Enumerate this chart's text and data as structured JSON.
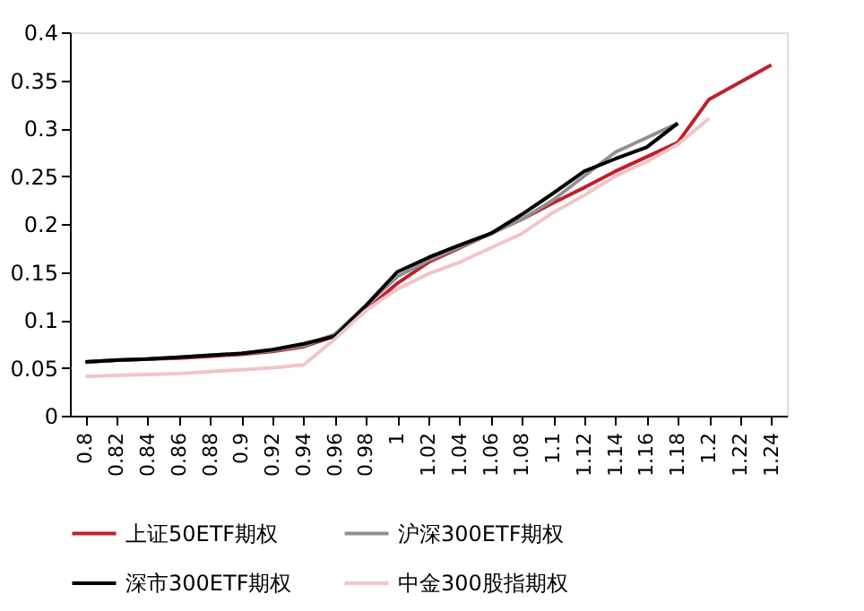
{
  "chart_data": {
    "type": "line",
    "categories": [
      "0.8",
      "0.82",
      "0.84",
      "0.86",
      "0.88",
      "0.9",
      "0.92",
      "0.94",
      "0.96",
      "0.98",
      "1",
      "1.02",
      "1.04",
      "1.06",
      "1.08",
      "1.1",
      "1.12",
      "1.14",
      "1.16",
      "1.18",
      "1.2",
      "1.22",
      "1.24"
    ],
    "series": [
      {
        "name": "上证50ETF期权",
        "color": "#c0202a",
        "values": [
          0.056,
          0.058,
          0.059,
          0.06,
          0.062,
          0.064,
          0.067,
          0.072,
          0.083,
          0.11,
          0.138,
          0.16,
          0.175,
          0.19,
          0.205,
          0.222,
          0.238,
          0.255,
          0.27,
          0.285,
          0.33,
          0.348,
          0.366
        ]
      },
      {
        "name": "沪深300ETF期权",
        "color": "#909090",
        "values": [
          0.056,
          0.058,
          0.059,
          0.061,
          0.063,
          0.065,
          0.068,
          0.073,
          0.085,
          0.115,
          0.145,
          0.162,
          0.176,
          0.19,
          0.205,
          0.225,
          0.25,
          0.275,
          0.29,
          0.305,
          null,
          null,
          null
        ]
      },
      {
        "name": "深市300ETF期权",
        "color": "#000000",
        "values": [
          0.056,
          0.058,
          0.059,
          0.061,
          0.063,
          0.065,
          0.069,
          0.075,
          0.083,
          0.115,
          0.15,
          0.165,
          0.178,
          0.19,
          0.21,
          0.232,
          0.255,
          0.268,
          0.28,
          0.305,
          null,
          null,
          null
        ]
      },
      {
        "name": "中金300股指期权",
        "color": "#f2c4c8",
        "values": [
          0.041,
          0.042,
          0.043,
          0.044,
          0.046,
          0.048,
          0.05,
          0.053,
          0.08,
          0.11,
          0.132,
          0.148,
          0.16,
          0.175,
          0.19,
          0.212,
          0.23,
          0.25,
          0.265,
          0.283,
          0.31,
          null,
          null
        ]
      }
    ],
    "ylim": [
      0,
      0.4
    ],
    "yticks": [
      0,
      0.05,
      0.1,
      0.15,
      0.2,
      0.25,
      0.3,
      0.35,
      0.4
    ],
    "grid": false,
    "legend": "bottom",
    "marker": "none",
    "line_style": "solid"
  }
}
